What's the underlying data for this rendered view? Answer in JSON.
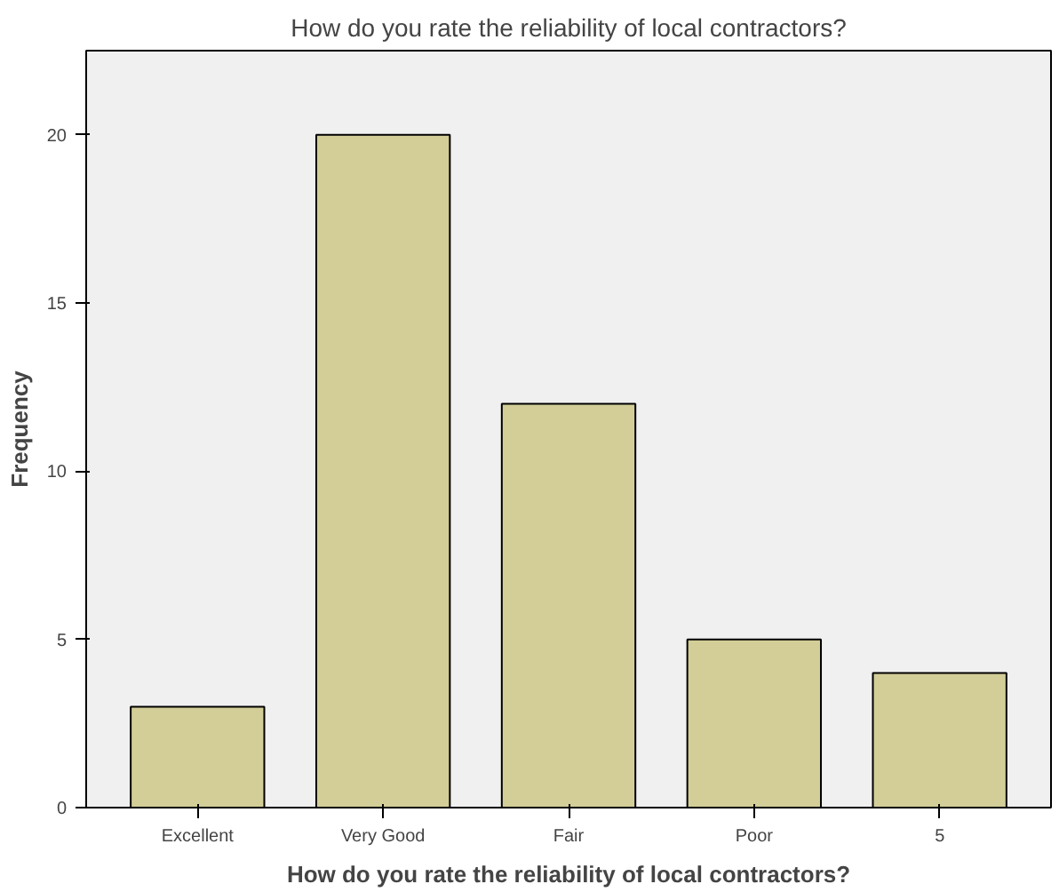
{
  "chart_data": {
    "type": "bar",
    "title": "How do you rate the reliability of local contractors?",
    "xlabel": "How do you rate the reliability of local contractors?",
    "ylabel": "Frequency",
    "categories": [
      "Excellent",
      "Very Good",
      "Fair",
      "Poor",
      "5"
    ],
    "values": [
      3,
      20,
      12,
      5,
      4
    ],
    "color": "#d3ce97",
    "ylim": [
      0,
      22.5
    ],
    "yticks": [
      0,
      5,
      10,
      15,
      20
    ],
    "grid": false
  }
}
